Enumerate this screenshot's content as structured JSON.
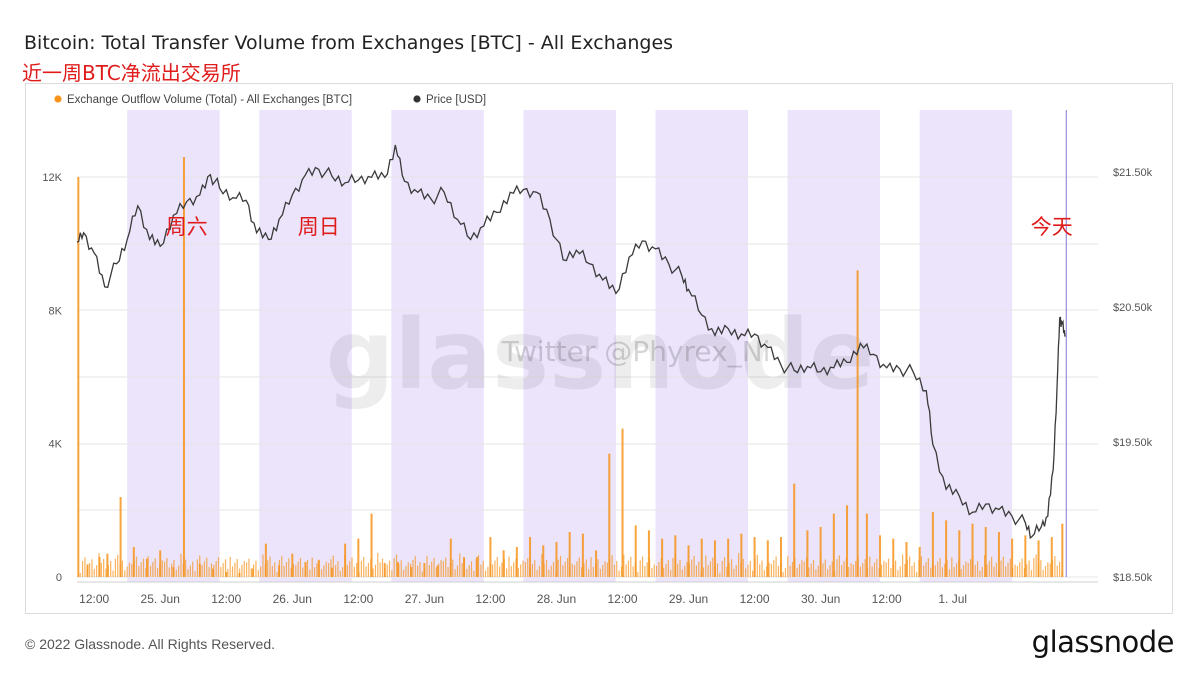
{
  "header": {
    "title": "Bitcoin: Total Transfer Volume from Exchanges [BTC] - All Exchanges",
    "subtitle": "近一周BTC净流出交易所"
  },
  "footer": {
    "copyright": "© 2022 Glassnode. All Rights Reserved.",
    "logo": "glassnode"
  },
  "watermark": {
    "brand": "glassnode",
    "handle": "Twitter @Phyrex_Ni"
  },
  "chart_data": {
    "type": "bar",
    "title": "Bitcoin: Total Transfer Volume from Exchanges [BTC] - All Exchanges",
    "legend": {
      "placement": "top-left",
      "entries": [
        {
          "label": "Exchange Outflow Volume (Total) - All Exchanges [BTC]",
          "color": "#f7931a"
        },
        {
          "label": "Price [USD]",
          "color": "#333333"
        }
      ]
    },
    "x_ticks": [
      "12:00",
      "25. Jun",
      "12:00",
      "26. Jun",
      "12:00",
      "27. Jun",
      "12:00",
      "28. Jun",
      "12:00",
      "29. Jun",
      "12:00",
      "30. Jun",
      "12:00",
      "1. Jul"
    ],
    "x_range_days": [
      -0.63,
      7.1
    ],
    "y_left": {
      "ticks": [
        "0",
        "4K",
        "8K",
        "12K"
      ],
      "tick_values": [
        0,
        4000,
        8000,
        12000
      ],
      "range": [
        0,
        14000
      ]
    },
    "y_right": {
      "ticks": [
        "$18.50k",
        "$19.50k",
        "$20.50k",
        "$21.50k"
      ],
      "tick_values": [
        18500,
        19500,
        20500,
        21500
      ],
      "range": [
        18500,
        21950
      ]
    },
    "weekend_shading": [
      {
        "start": -0.25,
        "end": 0.45
      },
      {
        "start": 0.75,
        "end": 1.45
      },
      {
        "start": 1.75,
        "end": 2.45
      },
      {
        "start": 2.75,
        "end": 3.45
      },
      {
        "start": 3.75,
        "end": 4.45
      },
      {
        "start": 4.75,
        "end": 5.45
      },
      {
        "start": 5.75,
        "end": 6.45
      }
    ],
    "annotations": [
      {
        "text": "周六",
        "x": 0.2,
        "y": 21100
      },
      {
        "text": "周日",
        "x": 1.2,
        "y": 21100
      },
      {
        "text": "今天",
        "x": 6.75,
        "y": 21100
      }
    ],
    "series": [
      {
        "name": "Price [USD]",
        "kind": "line",
        "axis": "right",
        "color": "#3a3a3a",
        "points": [
          [
            -0.63,
            20980
          ],
          [
            -0.58,
            21050
          ],
          [
            -0.5,
            20900
          ],
          [
            -0.42,
            20650
          ],
          [
            -0.33,
            20820
          ],
          [
            -0.25,
            21000
          ],
          [
            -0.17,
            21250
          ],
          [
            -0.08,
            21000
          ],
          [
            0.0,
            20950
          ],
          [
            0.1,
            21180
          ],
          [
            0.2,
            21280
          ],
          [
            0.3,
            21330
          ],
          [
            0.38,
            21480
          ],
          [
            0.45,
            21380
          ],
          [
            0.55,
            21310
          ],
          [
            0.65,
            21290
          ],
          [
            0.73,
            21050
          ],
          [
            0.82,
            21000
          ],
          [
            0.9,
            21150
          ],
          [
            1.0,
            21330
          ],
          [
            1.1,
            21480
          ],
          [
            1.2,
            21520
          ],
          [
            1.3,
            21470
          ],
          [
            1.4,
            21420
          ],
          [
            1.5,
            21440
          ],
          [
            1.6,
            21460
          ],
          [
            1.7,
            21460
          ],
          [
            1.78,
            21700
          ],
          [
            1.85,
            21430
          ],
          [
            1.95,
            21350
          ],
          [
            2.05,
            21300
          ],
          [
            2.15,
            21350
          ],
          [
            2.25,
            21150
          ],
          [
            2.35,
            21000
          ],
          [
            2.45,
            21100
          ],
          [
            2.55,
            21200
          ],
          [
            2.65,
            21350
          ],
          [
            2.75,
            21370
          ],
          [
            2.85,
            21350
          ],
          [
            2.95,
            21150
          ],
          [
            3.05,
            20850
          ],
          [
            3.15,
            20920
          ],
          [
            3.25,
            20820
          ],
          [
            3.35,
            20700
          ],
          [
            3.45,
            20600
          ],
          [
            3.55,
            20870
          ],
          [
            3.65,
            20990
          ],
          [
            3.75,
            20930
          ],
          [
            3.85,
            20820
          ],
          [
            3.95,
            20730
          ],
          [
            4.0,
            20630
          ],
          [
            4.1,
            20440
          ],
          [
            4.2,
            20290
          ],
          [
            4.3,
            20340
          ],
          [
            4.4,
            20300
          ],
          [
            4.5,
            20300
          ],
          [
            4.6,
            20200
          ],
          [
            4.7,
            20070
          ],
          [
            4.8,
            20030
          ],
          [
            4.9,
            20060
          ],
          [
            5.0,
            20020
          ],
          [
            5.1,
            20050
          ],
          [
            5.2,
            20090
          ],
          [
            5.3,
            20230
          ],
          [
            5.4,
            20150
          ],
          [
            5.5,
            20050
          ],
          [
            5.6,
            20040
          ],
          [
            5.7,
            20020
          ],
          [
            5.8,
            19880
          ],
          [
            5.85,
            19480
          ],
          [
            5.95,
            19150
          ],
          [
            6.05,
            19100
          ],
          [
            6.15,
            18980
          ],
          [
            6.25,
            19040
          ],
          [
            6.35,
            19000
          ],
          [
            6.45,
            18950
          ],
          [
            6.55,
            18900
          ],
          [
            6.6,
            18800
          ],
          [
            6.67,
            18870
          ],
          [
            6.72,
            18950
          ],
          [
            6.76,
            19290
          ],
          [
            6.79,
            19920
          ],
          [
            6.81,
            20420
          ],
          [
            6.83,
            20380
          ],
          [
            6.85,
            20280
          ]
        ]
      },
      {
        "name": "Exchange Outflow Volume (Total) - All Exchanges [BTC]",
        "kind": "bar",
        "axis": "left",
        "color": "#f7931a",
        "points": [
          [
            -0.62,
            12000
          ],
          [
            -0.55,
            380
          ],
          [
            -0.46,
            600
          ],
          [
            -0.4,
            700
          ],
          [
            -0.3,
            2400
          ],
          [
            -0.2,
            900
          ],
          [
            -0.1,
            550
          ],
          [
            0.0,
            800
          ],
          [
            0.1,
            300
          ],
          [
            0.18,
            12600
          ],
          [
            0.3,
            400
          ],
          [
            0.4,
            250
          ],
          [
            0.5,
            150
          ],
          [
            0.6,
            120
          ],
          [
            0.7,
            250
          ],
          [
            0.8,
            1000
          ],
          [
            0.9,
            350
          ],
          [
            1.0,
            700
          ],
          [
            1.1,
            450
          ],
          [
            1.2,
            500
          ],
          [
            1.3,
            280
          ],
          [
            1.4,
            1000
          ],
          [
            1.5,
            1150
          ],
          [
            1.6,
            1900
          ],
          [
            1.7,
            420
          ],
          [
            1.8,
            450
          ],
          [
            1.9,
            300
          ],
          [
            2.0,
            420
          ],
          [
            2.1,
            350
          ],
          [
            2.2,
            1150
          ],
          [
            2.3,
            600
          ],
          [
            2.4,
            600
          ],
          [
            2.5,
            1200
          ],
          [
            2.6,
            800
          ],
          [
            2.7,
            900
          ],
          [
            2.8,
            1200
          ],
          [
            2.9,
            950
          ],
          [
            3.0,
            1050
          ],
          [
            3.1,
            1350
          ],
          [
            3.2,
            1300
          ],
          [
            3.3,
            800
          ],
          [
            3.4,
            3700
          ],
          [
            3.5,
            4450
          ],
          [
            3.6,
            1550
          ],
          [
            3.7,
            1400
          ],
          [
            3.8,
            1150
          ],
          [
            3.9,
            1250
          ],
          [
            4.0,
            950
          ],
          [
            4.1,
            1150
          ],
          [
            4.2,
            1100
          ],
          [
            4.3,
            1150
          ],
          [
            4.4,
            1300
          ],
          [
            4.5,
            1200
          ],
          [
            4.6,
            1100
          ],
          [
            4.7,
            1200
          ],
          [
            4.8,
            2800
          ],
          [
            4.9,
            1400
          ],
          [
            5.0,
            1500
          ],
          [
            5.1,
            1900
          ],
          [
            5.2,
            2150
          ],
          [
            5.28,
            9200
          ],
          [
            5.35,
            1900
          ],
          [
            5.45,
            1250
          ],
          [
            5.55,
            1150
          ],
          [
            5.65,
            1050
          ],
          [
            5.75,
            900
          ],
          [
            5.85,
            1950
          ],
          [
            5.95,
            1700
          ],
          [
            6.05,
            1400
          ],
          [
            6.15,
            1600
          ],
          [
            6.25,
            1500
          ],
          [
            6.35,
            1350
          ],
          [
            6.45,
            1150
          ],
          [
            6.55,
            1250
          ],
          [
            6.65,
            1100
          ],
          [
            6.75,
            1200
          ],
          [
            6.83,
            1600
          ]
        ]
      }
    ]
  }
}
